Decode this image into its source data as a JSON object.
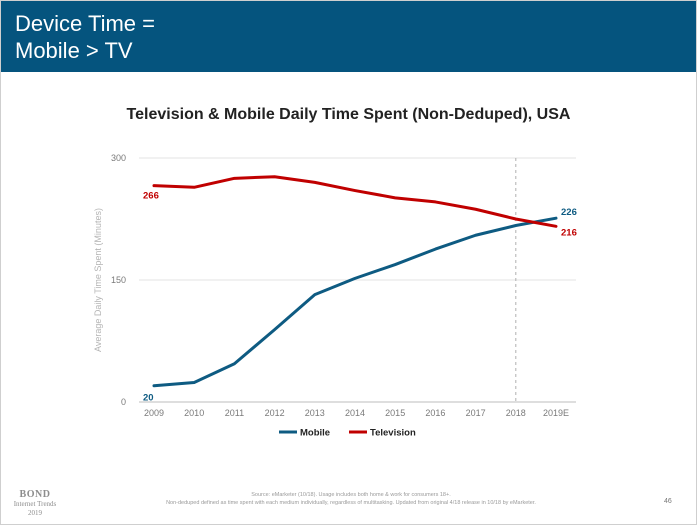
{
  "header": {
    "title_line1": "Device Time =",
    "title_line2": "Mobile > TV"
  },
  "colors": {
    "header_bg": "#05547e",
    "mobile": "#0e5b82",
    "television": "#c00000"
  },
  "chart_data": {
    "type": "line",
    "title": "Television & Mobile Daily Time Spent (Non-Deduped), USA",
    "xlabel": "",
    "ylabel": "Average Daily Time Spent (Minutes)",
    "categories": [
      "2009",
      "2010",
      "2011",
      "2012",
      "2013",
      "2014",
      "2015",
      "2016",
      "2017",
      "2018",
      "2019E"
    ],
    "ylim": [
      0,
      300
    ],
    "yticks": [
      0,
      150,
      300
    ],
    "grid": true,
    "legend_position": "bottom",
    "forecast_divider_at": "2018",
    "series": [
      {
        "name": "Mobile",
        "color": "#0e5b82",
        "values": [
          20,
          24,
          47,
          89,
          132,
          152,
          169,
          188,
          205,
          217,
          226
        ],
        "start_label": "20",
        "end_label": "226"
      },
      {
        "name": "Television",
        "color": "#c00000",
        "values": [
          266,
          264,
          275,
          277,
          270,
          260,
          251,
          246,
          237,
          225,
          216
        ],
        "start_label": "266",
        "end_label": "216"
      }
    ]
  },
  "footer": {
    "logo_brand": "BOND",
    "logo_sub": "Internet Trends",
    "logo_year": "2019",
    "source_line1": "Source: eMarketer (10/18). Usage includes both home & work for consumers 18+.",
    "source_line2": "Non-deduped defined as time spent with each medium individually, regardless of multitasking. Updated from original 4/18 release in 10/18 by eMarketer.",
    "page_number": "46"
  }
}
